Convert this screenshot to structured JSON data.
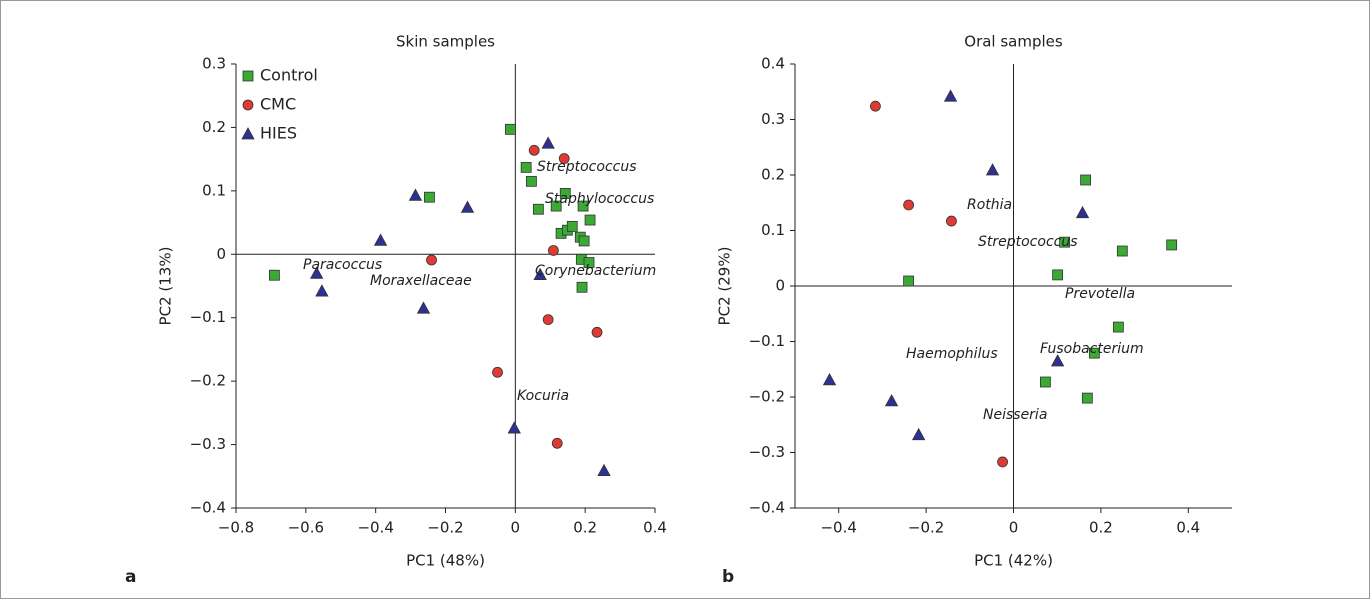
{
  "chart_data": [
    {
      "type": "scatter",
      "title": "Skin samples",
      "xlabel": "PC1 (48%)",
      "ylabel": "PC2 (13%)",
      "panel_label": "a",
      "xlim": [
        -0.8,
        0.4
      ],
      "ylim": [
        -0.4,
        0.3
      ],
      "xticks": [
        {
          "value": -0.8,
          "label": "−0.8"
        },
        {
          "value": -0.6,
          "label": "−0.6"
        },
        {
          "value": -0.4,
          "label": "−0.4"
        },
        {
          "value": -0.2,
          "label": "−0.2"
        },
        0,
        0.2,
        0.4
      ],
      "yticks": [
        {
          "value": -0.4,
          "label": "−0.4"
        },
        {
          "value": -0.3,
          "label": "−0.3"
        },
        {
          "value": -0.2,
          "label": "−0.2"
        },
        {
          "value": -0.1,
          "label": "−0.1"
        },
        0,
        0.1,
        0.2,
        0.3
      ],
      "legend": "upper left",
      "series": [
        {
          "name": "Control",
          "marker": "square",
          "color": "#3aaa35",
          "x": [
            -0.69,
            -0.246,
            -0.014,
            0.031,
            0.046,
            0.066,
            0.143,
            0.117,
            0.131,
            0.149,
            0.163,
            0.186,
            0.197,
            0.194,
            0.214,
            0.189,
            0.211,
            0.191
          ],
          "values": [
            -0.033,
            0.09,
            0.197,
            0.137,
            0.115,
            0.071,
            0.096,
            0.076,
            0.033,
            0.038,
            0.044,
            0.027,
            0.021,
            0.076,
            0.054,
            -0.008,
            -0.013,
            -0.052
          ]
        },
        {
          "name": "CMC",
          "marker": "circle",
          "color": "#e03a35",
          "x": [
            0.054,
            0.14,
            -0.24,
            0.109,
            0.094,
            0.234,
            -0.051,
            0.12
          ],
          "values": [
            0.164,
            0.151,
            -0.009,
            0.006,
            -0.103,
            -0.123,
            -0.186,
            -0.298
          ]
        },
        {
          "name": "HIES",
          "marker": "triangle",
          "color": "#2e3192",
          "x": [
            0.094,
            -0.286,
            -0.137,
            -0.386,
            -0.569,
            -0.554,
            -0.263,
            0.071,
            -0.003,
            0.254
          ],
          "values": [
            0.175,
            0.093,
            0.074,
            0.022,
            -0.03,
            -0.058,
            -0.085,
            -0.032,
            -0.274,
            -0.341
          ]
        }
      ],
      "annotations": [
        "Streptococcus",
        "Staphylococcus",
        "Paracoccus",
        "Moraxellaceae",
        "Corynebacterium",
        "Kocuria"
      ]
    },
    {
      "type": "scatter",
      "title": "Oral samples",
      "xlabel": "PC1 (42%)",
      "ylabel": "PC2 (29%)",
      "panel_label": "b",
      "xlim": [
        -0.5,
        0.5
      ],
      "ylim": [
        -0.4,
        0.4
      ],
      "xticks": [
        {
          "value": -0.4,
          "label": "−0.4"
        },
        {
          "value": -0.2,
          "label": "−0.2"
        },
        0,
        0.2,
        0.4
      ],
      "yticks": [
        {
          "value": -0.4,
          "label": "−0.4"
        },
        {
          "value": -0.3,
          "label": "−0.3"
        },
        {
          "value": -0.2,
          "label": "−0.2"
        },
        {
          "value": -0.1,
          "label": "−0.1"
        },
        0,
        0.1,
        0.2,
        0.3,
        0.4
      ],
      "series": [
        {
          "marker": "square",
          "color": "#3aaa35",
          "x": [
            0.165,
            0.117,
            0.249,
            0.362,
            0.101,
            -0.24,
            0.24,
            0.185,
            0.073,
            0.169
          ],
          "values": [
            0.191,
            0.079,
            0.063,
            0.074,
            0.02,
            0.009,
            -0.074,
            -0.121,
            -0.173,
            -0.202
          ]
        },
        {
          "marker": "circle",
          "color": "#e03a35",
          "x": [
            -0.316,
            -0.24,
            -0.142,
            -0.025
          ],
          "values": [
            0.324,
            0.146,
            0.117,
            -0.317
          ]
        },
        {
          "marker": "triangle",
          "color": "#2e3192",
          "x": [
            -0.144,
            -0.048,
            0.158,
            0.101,
            -0.421,
            -0.279,
            -0.217
          ],
          "values": [
            0.342,
            0.209,
            0.132,
            -0.135,
            -0.169,
            -0.207,
            -0.268
          ]
        }
      ],
      "annotations": [
        "Rothia",
        "Streptococcus",
        "Prevotella",
        "Haemophilus",
        "Fusobacterium",
        "Neisseria"
      ]
    }
  ]
}
